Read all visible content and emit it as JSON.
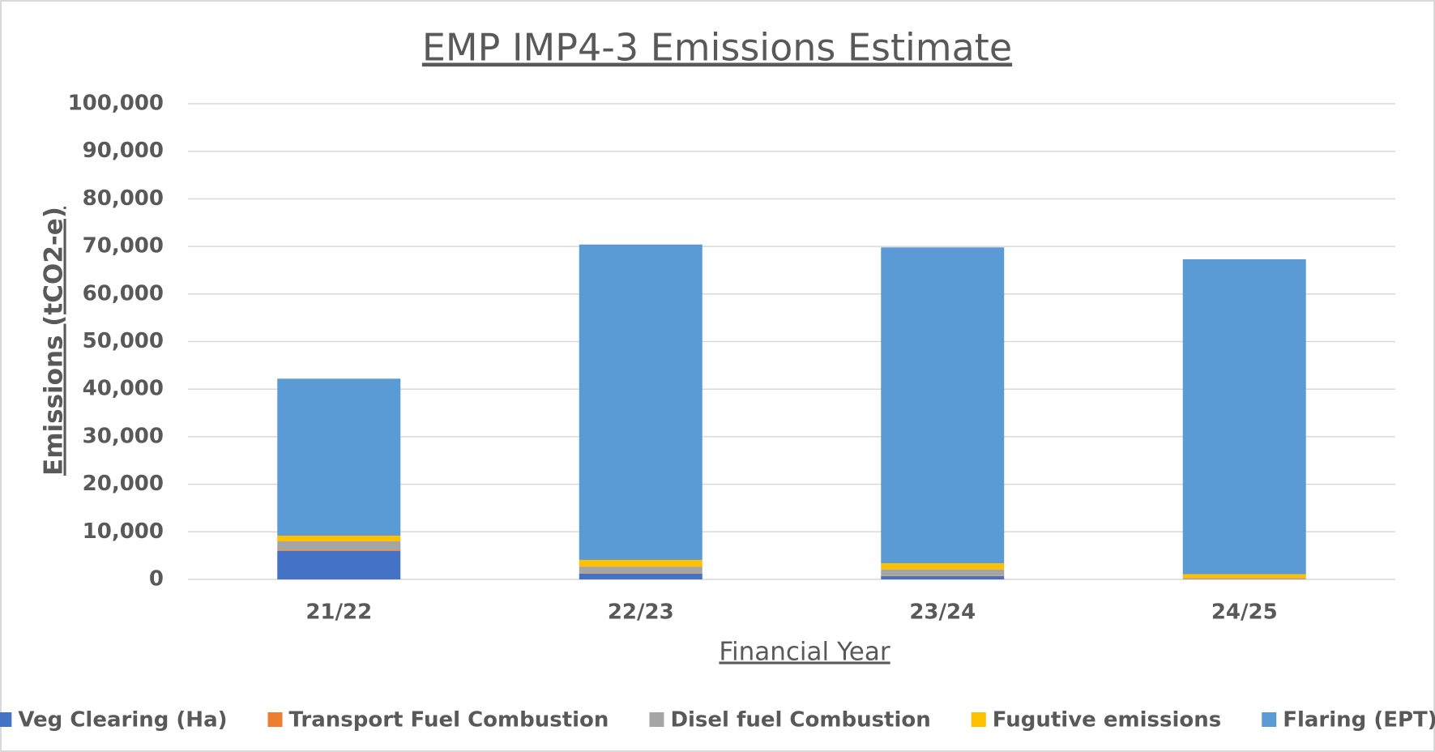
{
  "chart_data": {
    "type": "stacked_bar",
    "title": "EMP IMP4-3 Emissions Estimate",
    "x_label": "Financial Year",
    "y_label": "Emissions (tCO2-e)",
    "categories": [
      "21/22",
      "22/23",
      "23/24",
      "24/25"
    ],
    "series": [
      {
        "name": "Veg Clearing (Ha)",
        "color": "#4472c4",
        "values": [
          6000,
          1200,
          700,
          0
        ]
      },
      {
        "name": "Transport Fuel Combustion",
        "color": "#ed7d31",
        "values": [
          200,
          100,
          100,
          100
        ]
      },
      {
        "name": "Disel fuel Combustion",
        "color": "#a5a5a5",
        "values": [
          1800,
          1400,
          1300,
          200
        ]
      },
      {
        "name": "Fugutive emissions",
        "color": "#ffc000",
        "values": [
          1200,
          1400,
          1300,
          800
        ]
      },
      {
        "name": "Flaring (EPT)",
        "color": "#5b9bd5",
        "values": [
          33000,
          66300,
          66400,
          66200
        ]
      }
    ],
    "ylim": [
      0,
      100000
    ],
    "yticks": [
      0,
      {
        "value": 10000,
        "label": "10,000"
      },
      {
        "value": 20000,
        "label": "20,000"
      },
      {
        "value": 30000,
        "label": "30,000"
      },
      {
        "value": 40000,
        "label": "40,000"
      },
      {
        "value": 50000,
        "label": "50,000"
      },
      {
        "value": 60000,
        "label": "60,000"
      },
      {
        "value": 70000,
        "label": "70,000"
      },
      {
        "value": 80000,
        "label": "80,000"
      },
      {
        "value": 90000,
        "label": "90,000"
      },
      {
        "value": 100000,
        "label": "100,000"
      }
    ],
    "grid": true,
    "legend": "bottom"
  }
}
